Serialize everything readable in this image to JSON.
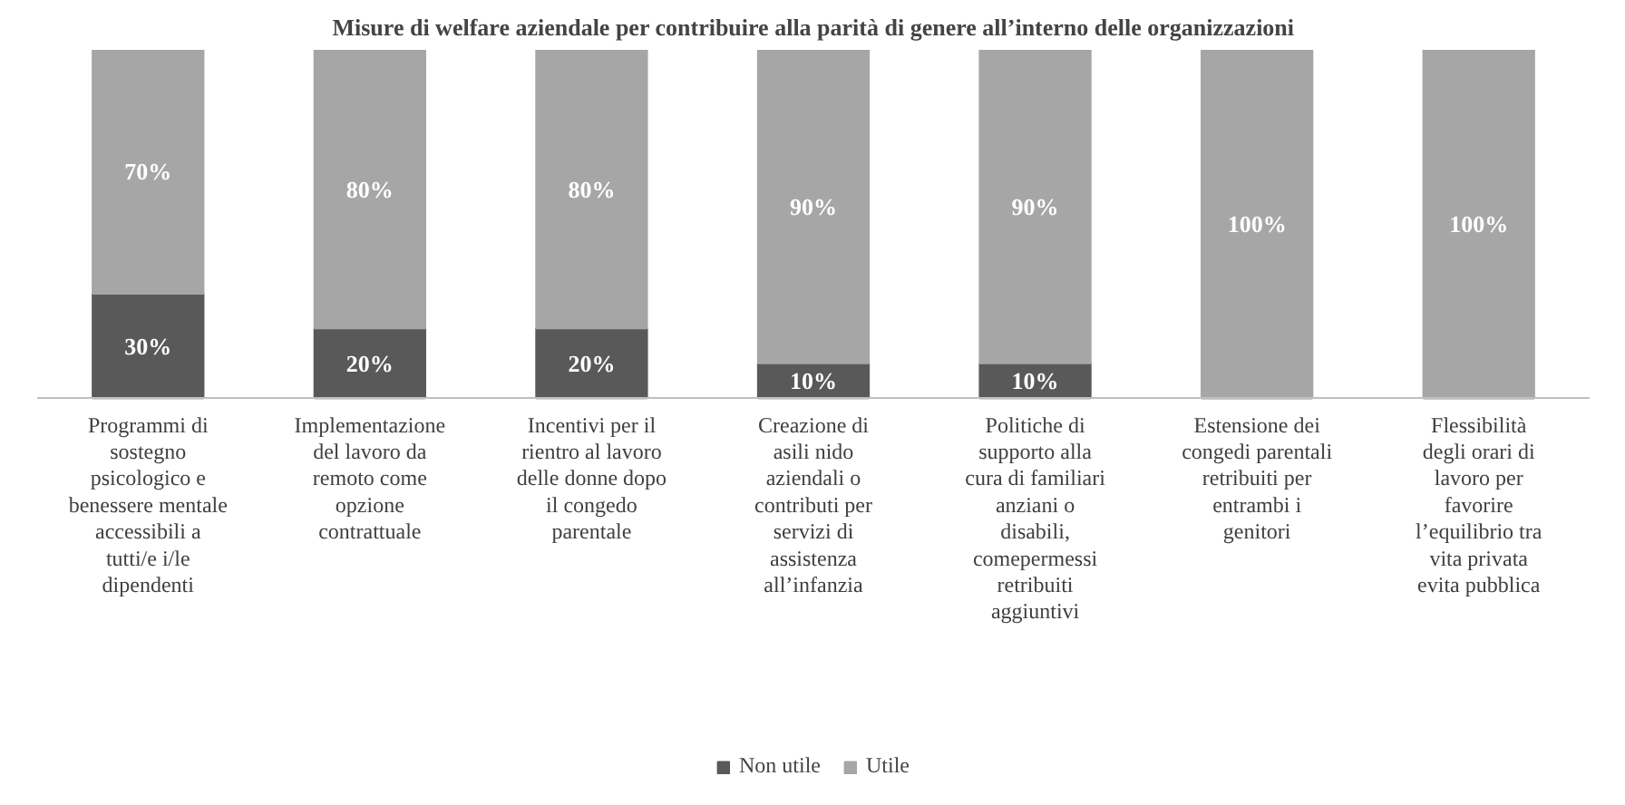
{
  "chart_data": {
    "type": "bar",
    "stacked": true,
    "title": "Misure di welfare aziendale per contribuire alla parità di genere all’interno delle organizzazioni",
    "categories": [
      "Programmi di sostegno psicologico e benessere mentale accessibili a tutti/e i/le dipendenti",
      "Implementazione del lavoro da remoto come opzione contrattuale",
      "Incentivi per il rientro al lavoro delle donne dopo il congedo parentale",
      "Creazione di asili nido aziendali o contributi per servizi di assistenza all’infanzia",
      "Politiche di supporto alla cura di familiari anziani o disabili, comepermessi retribuiti aggiuntivi",
      "Estensione dei congedi parentali retribuiti per entrambi i genitori",
      "Flessibilità degli orari di lavoro per favorire l’equilibrio tra vita privata evita pubblica"
    ],
    "series": [
      {
        "name": "Non utile",
        "color": "#595959",
        "values": [
          30,
          20,
          20,
          10,
          10,
          0,
          0
        ],
        "value_labels": [
          "30%",
          "20%",
          "20%",
          "10%",
          "10%",
          null,
          null
        ]
      },
      {
        "name": "Utile",
        "color": "#a6a6a6",
        "values": [
          70,
          80,
          80,
          90,
          90,
          100,
          100
        ],
        "value_labels": [
          "70%",
          "80%",
          "80%",
          "90%",
          "90%",
          "100%",
          "100%"
        ]
      }
    ],
    "legend": "bottom",
    "grid": false
  }
}
